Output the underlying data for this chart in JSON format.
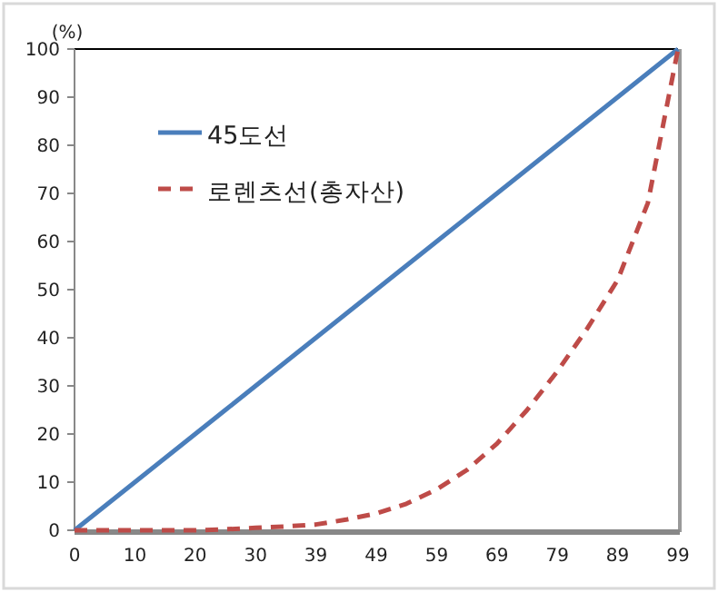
{
  "chart_data": {
    "type": "line",
    "ylabel": "(%)",
    "ylim": [
      0,
      100
    ],
    "yticks": [
      0,
      10,
      20,
      30,
      40,
      50,
      60,
      70,
      80,
      90,
      100
    ],
    "grid": false,
    "legend": "top left",
    "marker": "none",
    "categories": [
      "0",
      null,
      "10",
      null,
      "20",
      null,
      "30",
      null,
      "39",
      null,
      "49",
      null,
      "59",
      null,
      "69",
      null,
      "79",
      null,
      "89",
      null,
      "99"
    ],
    "series": [
      {
        "name": "45도선",
        "color": "#4a7ebb",
        "line_style": "solid",
        "values": [
          0,
          5,
          10,
          15,
          20,
          25,
          30,
          35,
          40,
          45,
          50,
          55,
          60,
          65,
          70,
          75,
          80,
          85,
          90,
          95,
          100
        ]
      },
      {
        "name": "로렌츠선(총자산)",
        "color": "#be4b48",
        "line_style": "dashed",
        "values": [
          0,
          0,
          0,
          0,
          0,
          0.2,
          0.5,
          0.8,
          1.2,
          2.2,
          3.5,
          5.5,
          8.5,
          12.5,
          18,
          25,
          33,
          42,
          52,
          68,
          100
        ]
      }
    ]
  }
}
